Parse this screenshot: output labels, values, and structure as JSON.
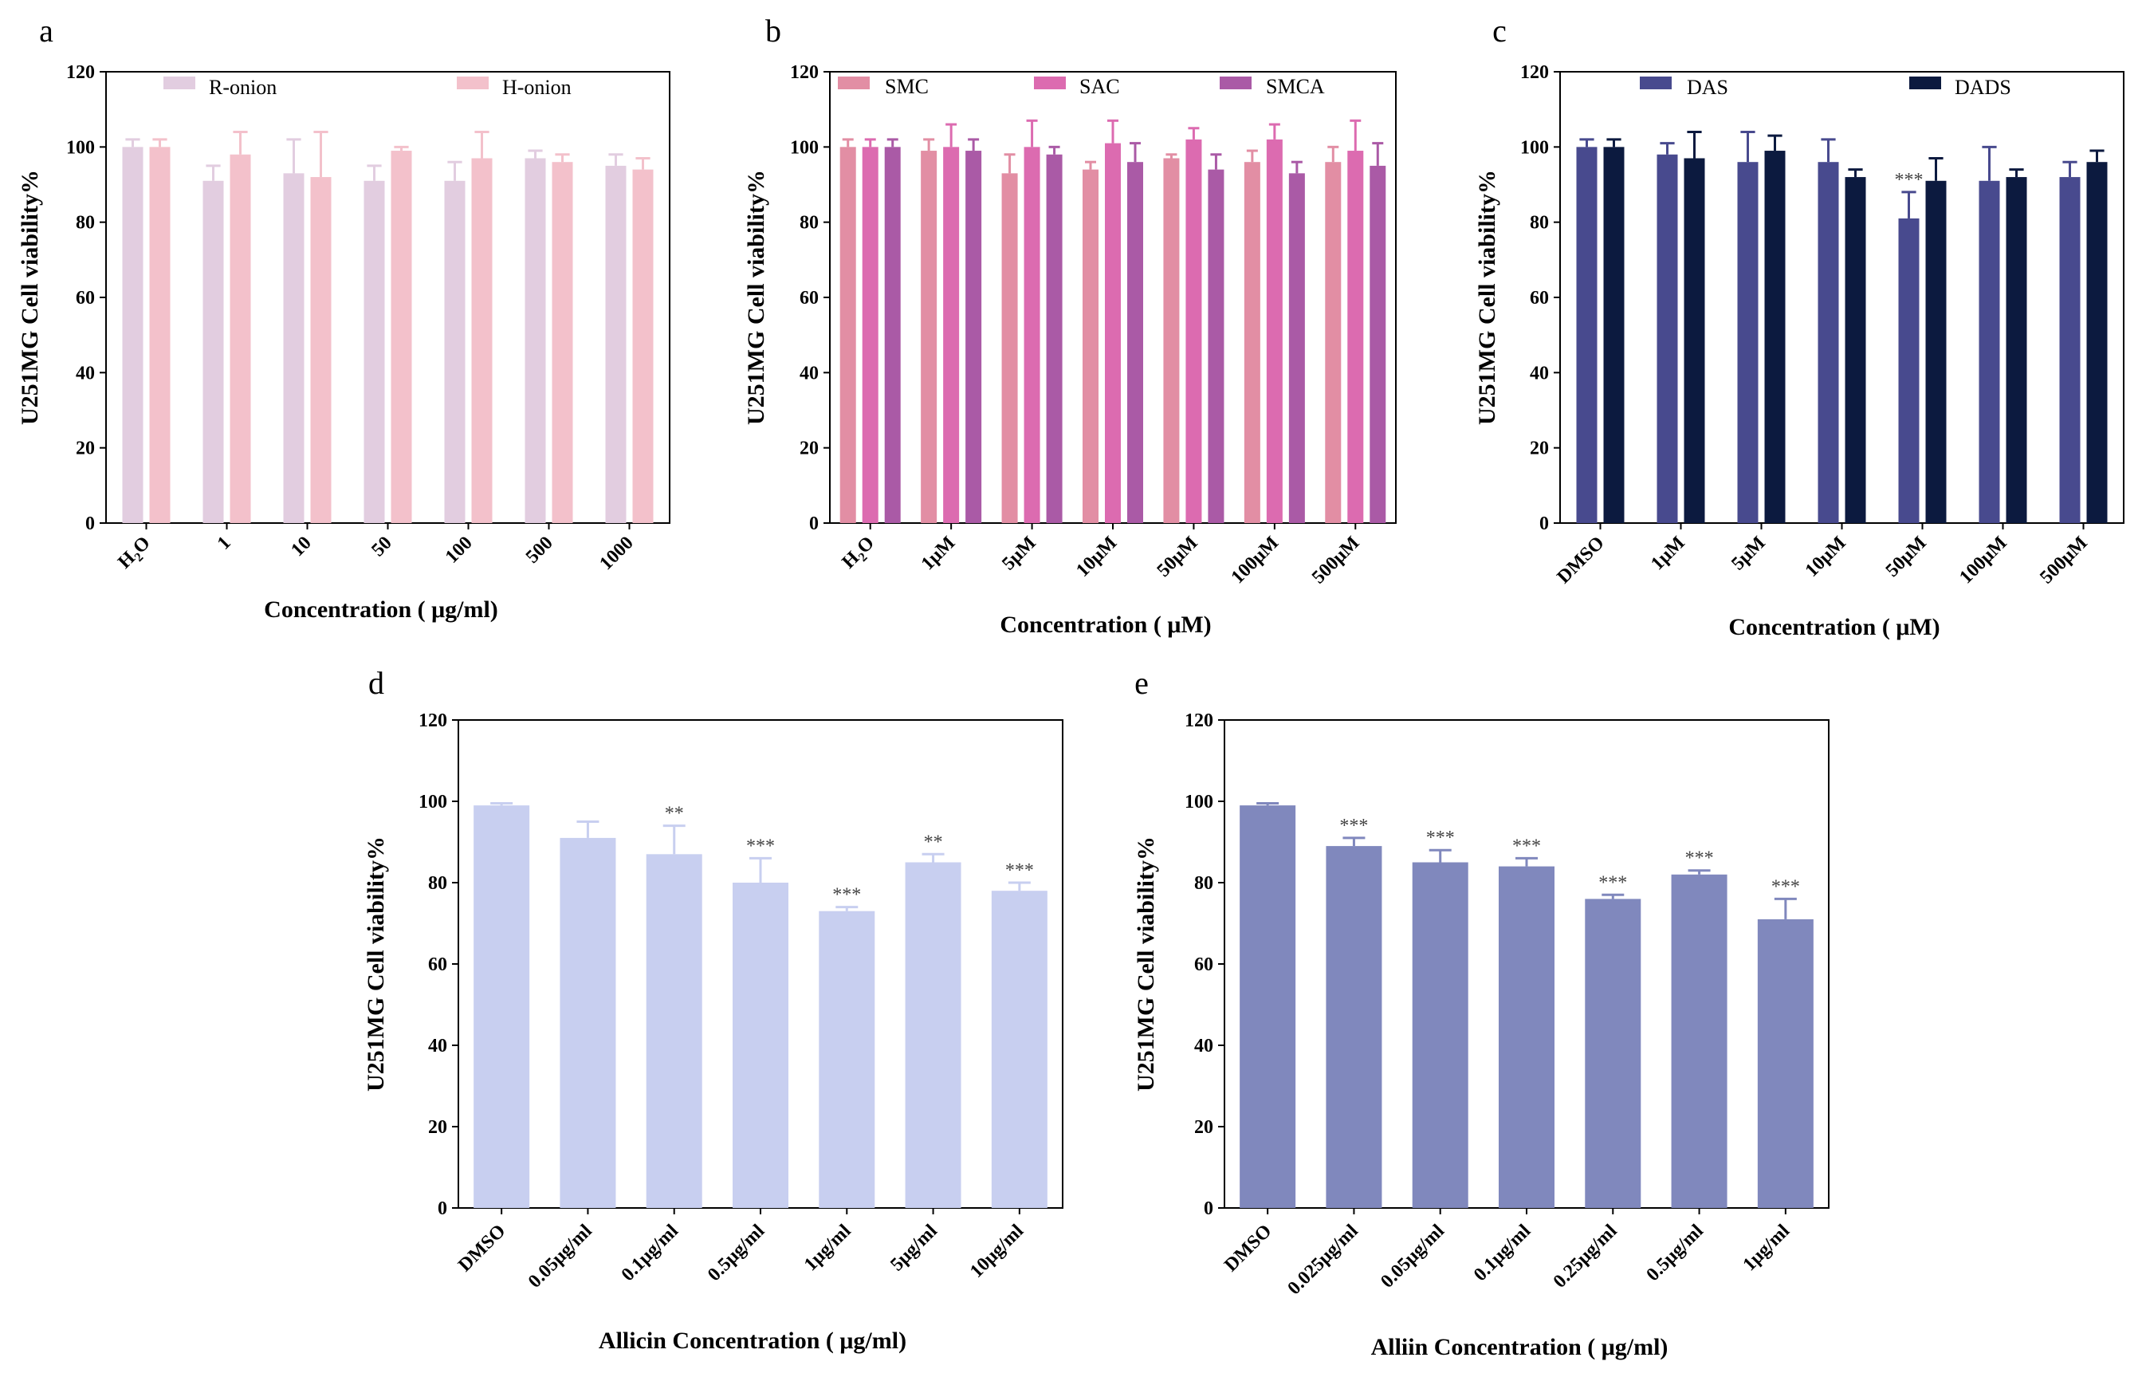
{
  "chart_data": [
    {
      "panel": "a",
      "type": "bar",
      "ylabel": "U251MG Cell viability%",
      "xlabel": "Concentration ( μg/ml)",
      "ylim": [
        0,
        120
      ],
      "yticks": [
        "0",
        "20",
        "40",
        "60",
        "80",
        "100",
        "120"
      ],
      "categories": [
        "H2O",
        "1",
        "10",
        "50",
        "100",
        "500",
        "1000"
      ],
      "series": [
        {
          "name": "R-onion",
          "color": "#e2cde0",
          "values": [
            100,
            91,
            93,
            91,
            91,
            97,
            95
          ],
          "errors": [
            2,
            4,
            9,
            4,
            5,
            2,
            3
          ]
        },
        {
          "name": "H-onion",
          "color": "#f3c1cb",
          "values": [
            100,
            98,
            92,
            99,
            97,
            96,
            94
          ],
          "errors": [
            2,
            6,
            12,
            1,
            7,
            2,
            3
          ]
        }
      ],
      "significance": [
        [],
        []
      ]
    },
    {
      "panel": "b",
      "type": "bar",
      "ylabel": "U251MG Cell viability%",
      "xlabel": "Concentration (  μM)",
      "ylim": [
        0,
        120
      ],
      "yticks": [
        "0",
        "20",
        "40",
        "60",
        "80",
        "100",
        "120"
      ],
      "categories": [
        "H2O",
        "1μM",
        "5μM",
        "10μM",
        "50μM",
        "100μM",
        "500μM"
      ],
      "series": [
        {
          "name": "SMC",
          "color": "#e28ea4",
          "values": [
            100,
            99,
            93,
            94,
            97,
            96,
            96
          ],
          "errors": [
            2,
            3,
            5,
            2,
            1,
            3,
            4
          ]
        },
        {
          "name": "SAC",
          "color": "#dc6bb0",
          "values": [
            100,
            100,
            100,
            101,
            102,
            102,
            99
          ],
          "errors": [
            2,
            6,
            7,
            6,
            3,
            4,
            8
          ]
        },
        {
          "name": "SMCA",
          "color": "#aa5aa6",
          "values": [
            100,
            99,
            98,
            96,
            94,
            93,
            95
          ],
          "errors": [
            2,
            3,
            2,
            5,
            4,
            3,
            6
          ]
        }
      ],
      "significance": [
        [],
        [],
        []
      ]
    },
    {
      "panel": "c",
      "type": "bar",
      "ylabel": "U251MG Cell viability%",
      "xlabel": "Concentration (  μM)",
      "ylim": [
        0,
        120
      ],
      "yticks": [
        "0",
        "20",
        "40",
        "60",
        "80",
        "100",
        "120"
      ],
      "categories": [
        "DMSO",
        "1μM",
        "5μM",
        "10μM",
        "50μM",
        "100μM",
        "500μM"
      ],
      "series": [
        {
          "name": "DAS",
          "color": "#484a8e",
          "values": [
            100,
            98,
            96,
            96,
            81,
            91,
            92
          ],
          "errors": [
            2,
            3,
            8,
            6,
            7,
            9,
            4
          ]
        },
        {
          "name": "DADS",
          "color": "#0c1a3f",
          "values": [
            100,
            97,
            99,
            92,
            91,
            92,
            96
          ],
          "errors": [
            2,
            7,
            4,
            2,
            6,
            2,
            3
          ]
        }
      ],
      "significance": [
        [
          "",
          "",
          "",
          "",
          "***",
          "",
          ""
        ],
        []
      ]
    },
    {
      "panel": "d",
      "type": "bar",
      "ylabel": "U251MG Cell viability%",
      "xlabel": "Allicin Concentration ( μg/ml)",
      "ylim": [
        0,
        120
      ],
      "yticks": [
        "0",
        "20",
        "40",
        "60",
        "80",
        "100",
        "120"
      ],
      "categories": [
        "DMSO",
        "0.05μg/ml",
        "0.1μg/ml",
        "0.5μg/ml",
        "1μg/ml",
        "5μg/ml",
        "10μg/ml"
      ],
      "series": [
        {
          "name": "Allicin",
          "color": "#c8cff0",
          "values": [
            99,
            91,
            87,
            80,
            73,
            85,
            78
          ],
          "errors": [
            0.5,
            4,
            7,
            6,
            1,
            2,
            2
          ]
        }
      ],
      "significance": [
        [
          "",
          "",
          "**",
          "***",
          "***",
          "**",
          "***"
        ]
      ]
    },
    {
      "panel": "e",
      "type": "bar",
      "ylabel": "U251MG Cell viability%",
      "xlabel": "Alliin Concentration ( μg/ml)",
      "ylim": [
        0,
        120
      ],
      "yticks": [
        "0",
        "20",
        "40",
        "60",
        "80",
        "100",
        "120"
      ],
      "categories": [
        "DMSO",
        "0.025μg/ml",
        "0.05μg/ml",
        "0.1μg/ml",
        "0.25μg/ml",
        "0.5μg/ml",
        "1μg/ml"
      ],
      "series": [
        {
          "name": "Alliin",
          "color": "#8088bd",
          "values": [
            99,
            89,
            85,
            84,
            76,
            82,
            71
          ],
          "errors": [
            0.5,
            2,
            3,
            2,
            1,
            1,
            5
          ]
        }
      ],
      "significance": [
        [
          "",
          "***",
          "***",
          "***",
          "***",
          "***",
          "***"
        ]
      ]
    }
  ]
}
